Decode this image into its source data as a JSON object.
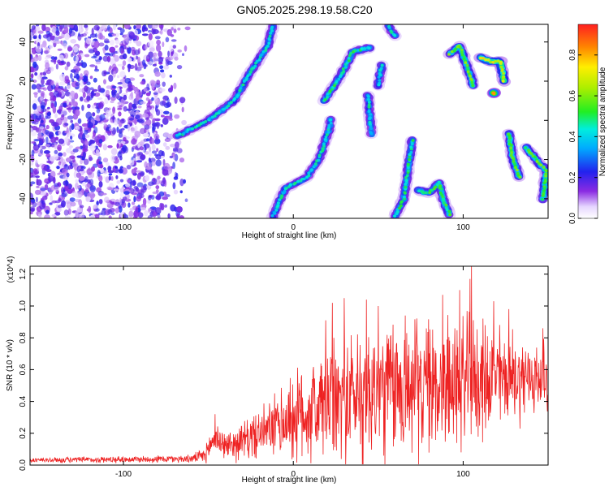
{
  "title": "GN05.2025.298.19.58.C20",
  "chart_data": [
    {
      "type": "heatmap",
      "xlabel": "Height of straight line (km)",
      "ylabel": "Frequency (Hz)",
      "xlim": [
        -155,
        150
      ],
      "ylim": [
        -50,
        49
      ],
      "xticks": [
        -100,
        0,
        100
      ],
      "xtick_labels": [
        "-100",
        "0",
        "100"
      ],
      "yticks": [
        -40,
        -20,
        0,
        20,
        40
      ],
      "ytick_labels": [
        "-40",
        "-20",
        "0",
        "20",
        "40"
      ],
      "colorbar": {
        "label": "Normalized spectral amplitude",
        "range": [
          0.0,
          0.95
        ],
        "ticks": [
          0.0,
          0.2,
          0.4,
          0.6,
          0.8
        ],
        "tick_labels": [
          "0.0",
          "0.2",
          "0.4",
          "0.6",
          "0.8"
        ],
        "colormap": "rainbow"
      },
      "grid": false,
      "noise_region": {
        "x": [
          -155,
          -62
        ],
        "y": [
          -50,
          49
        ],
        "amplitude": 0.2
      },
      "tracks": [
        {
          "points": [
            [
              -68,
              -8
            ],
            [
              -50,
              0
            ],
            [
              -35,
              10
            ],
            [
              -25,
              25
            ],
            [
              -15,
              38
            ],
            [
              -12,
              48
            ]
          ],
          "amplitude": 0.45
        },
        {
          "points": [
            [
              -12,
              -49
            ],
            [
              -5,
              -35
            ],
            [
              8,
              -29
            ],
            [
              15,
              -20
            ],
            [
              21,
              -5
            ],
            [
              22,
              0
            ]
          ],
          "amplitude": 0.45
        },
        {
          "points": [
            [
              18,
              10
            ],
            [
              28,
              23
            ],
            [
              35,
              35
            ],
            [
              45,
              37
            ]
          ],
          "amplitude": 0.5
        },
        {
          "points": [
            [
              44,
              13
            ],
            [
              46,
              -7
            ]
          ],
          "amplitude": 0.45
        },
        {
          "points": [
            [
              50,
              18
            ],
            [
              52,
              28
            ]
          ],
          "amplitude": 0.45
        },
        {
          "points": [
            [
              60,
              -49
            ],
            [
              65,
              -40
            ],
            [
              68,
              -22
            ],
            [
              70,
              -10
            ]
          ],
          "amplitude": 0.5
        },
        {
          "points": [
            [
              56,
              48
            ],
            [
              60,
              43
            ]
          ],
          "amplitude": 0.45
        },
        {
          "points": [
            [
              74,
              -36
            ],
            [
              80,
              -37
            ],
            [
              86,
              -32
            ],
            [
              88,
              -40
            ],
            [
              92,
              -48
            ]
          ],
          "amplitude": 0.55
        },
        {
          "points": [
            [
              92,
              34
            ],
            [
              98,
              38
            ],
            [
              102,
              28
            ],
            [
              106,
              18
            ]
          ],
          "amplitude": 0.6
        },
        {
          "points": [
            [
              110,
              32
            ],
            [
              116,
              30
            ],
            [
              122,
              30
            ],
            [
              124,
              20
            ]
          ],
          "amplitude": 0.75
        },
        {
          "points": [
            [
              118,
              14
            ]
          ],
          "amplitude": 0.9
        },
        {
          "points": [
            [
              127,
              -7
            ],
            [
              129,
              -19
            ],
            [
              133,
              -29
            ]
          ],
          "amplitude": 0.6
        },
        {
          "points": [
            [
              137,
              -14
            ],
            [
              141,
              -18
            ],
            [
              145,
              -22
            ],
            [
              149,
              -26
            ],
            [
              147,
              -40
            ]
          ],
          "amplitude": 0.6
        }
      ]
    },
    {
      "type": "line",
      "xlabel": "Height of straight line (km)",
      "ylabel": "SNR (10 * v/v)",
      "y_multiplier": "(x10^4)",
      "xlim": [
        -155,
        150
      ],
      "ylim": [
        0.0,
        1.25
      ],
      "xticks": [
        -100,
        0,
        100
      ],
      "xtick_labels": [
        "-100",
        "0",
        "100"
      ],
      "yticks": [
        0.0,
        0.2,
        0.4,
        0.6,
        0.8,
        1.0,
        1.2
      ],
      "ytick_labels": [
        "0.0",
        "0.2",
        "0.4",
        "0.6",
        "0.8",
        "1.0",
        "1.2"
      ],
      "grid": false,
      "series": [
        {
          "color": "#ee2222",
          "envelope": [
            {
              "x": -155,
              "base": 0.03,
              "spread": 0.02
            },
            {
              "x": -60,
              "base": 0.04,
              "spread": 0.03
            },
            {
              "x": -52,
              "base": 0.06,
              "spread": 0.06
            },
            {
              "x": -46,
              "base": 0.18,
              "spread": 0.14
            },
            {
              "x": -40,
              "base": 0.12,
              "spread": 0.1
            },
            {
              "x": -30,
              "base": 0.15,
              "spread": 0.15
            },
            {
              "x": -15,
              "base": 0.22,
              "spread": 0.2
            },
            {
              "x": 0,
              "base": 0.3,
              "spread": 0.35
            },
            {
              "x": 20,
              "base": 0.38,
              "spread": 0.45
            },
            {
              "x": 40,
              "base": 0.45,
              "spread": 0.55
            },
            {
              "x": 60,
              "base": 0.48,
              "spread": 0.55
            },
            {
              "x": 80,
              "base": 0.5,
              "spread": 0.5
            },
            {
              "x": 100,
              "base": 0.52,
              "spread": 0.5
            },
            {
              "x": 120,
              "base": 0.55,
              "spread": 0.4
            },
            {
              "x": 150,
              "base": 0.55,
              "spread": 0.25
            }
          ],
          "peaks": [
            {
              "x": -46,
              "y": 0.32
            },
            {
              "x": 19,
              "y": 0.91
            },
            {
              "x": 23,
              "y": 1.02
            },
            {
              "x": 30,
              "y": 1.05
            },
            {
              "x": 43,
              "y": 1.04
            },
            {
              "x": 50,
              "y": 1.0
            },
            {
              "x": 66,
              "y": 0.94
            },
            {
              "x": 88,
              "y": 1.07
            },
            {
              "x": 98,
              "y": 1.1
            },
            {
              "x": 104,
              "y": 1.17
            },
            {
              "x": 105,
              "y": 1.25
            },
            {
              "x": 118,
              "y": 1.03
            },
            {
              "x": 127,
              "y": 0.98
            },
            {
              "x": 147,
              "y": 0.86
            }
          ]
        }
      ]
    }
  ]
}
